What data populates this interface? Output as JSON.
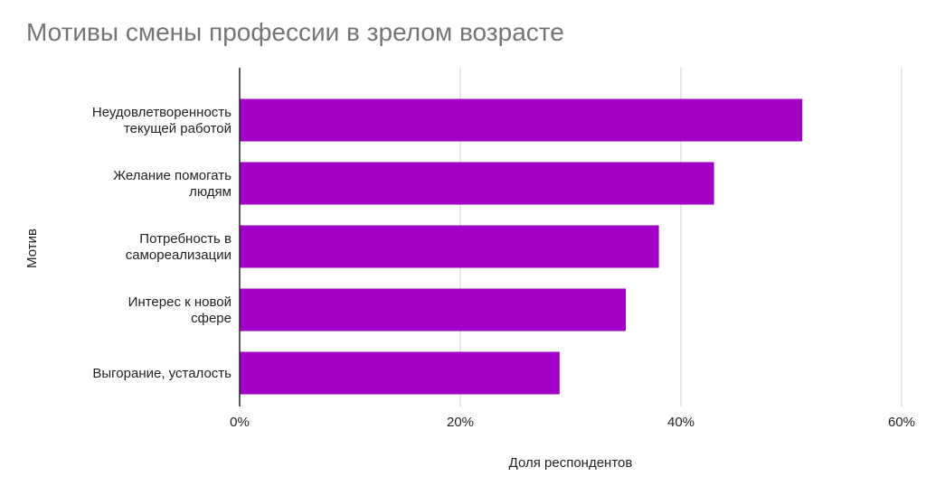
{
  "chart_data": {
    "type": "bar",
    "orientation": "horizontal",
    "title": "Мотивы смены профессии в зрелом возрасте",
    "xlabel": "Доля респондентов",
    "ylabel": "Мотив",
    "categories": [
      [
        "Неудовлетворенность",
        "текущей работой"
      ],
      [
        "Желание помогать",
        "людям"
      ],
      [
        "Потребность в",
        "самореализации"
      ],
      [
        "Интерес к новой",
        "сфере"
      ],
      [
        "Выгорание, усталость"
      ]
    ],
    "values": [
      0.51,
      0.43,
      0.38,
      0.35,
      0.29
    ],
    "xlim": [
      0,
      0.6
    ],
    "xticks": [
      {
        "value": 0,
        "label": "0%"
      },
      {
        "value": 0.2,
        "label": "20%"
      },
      {
        "value": 0.4,
        "label": "40%"
      },
      {
        "value": 0.6,
        "label": "60%"
      }
    ],
    "grid": true,
    "legend": "none",
    "bar_color": "#a200c6",
    "grid_color": "#cccccc",
    "axis_color": "#222222"
  }
}
